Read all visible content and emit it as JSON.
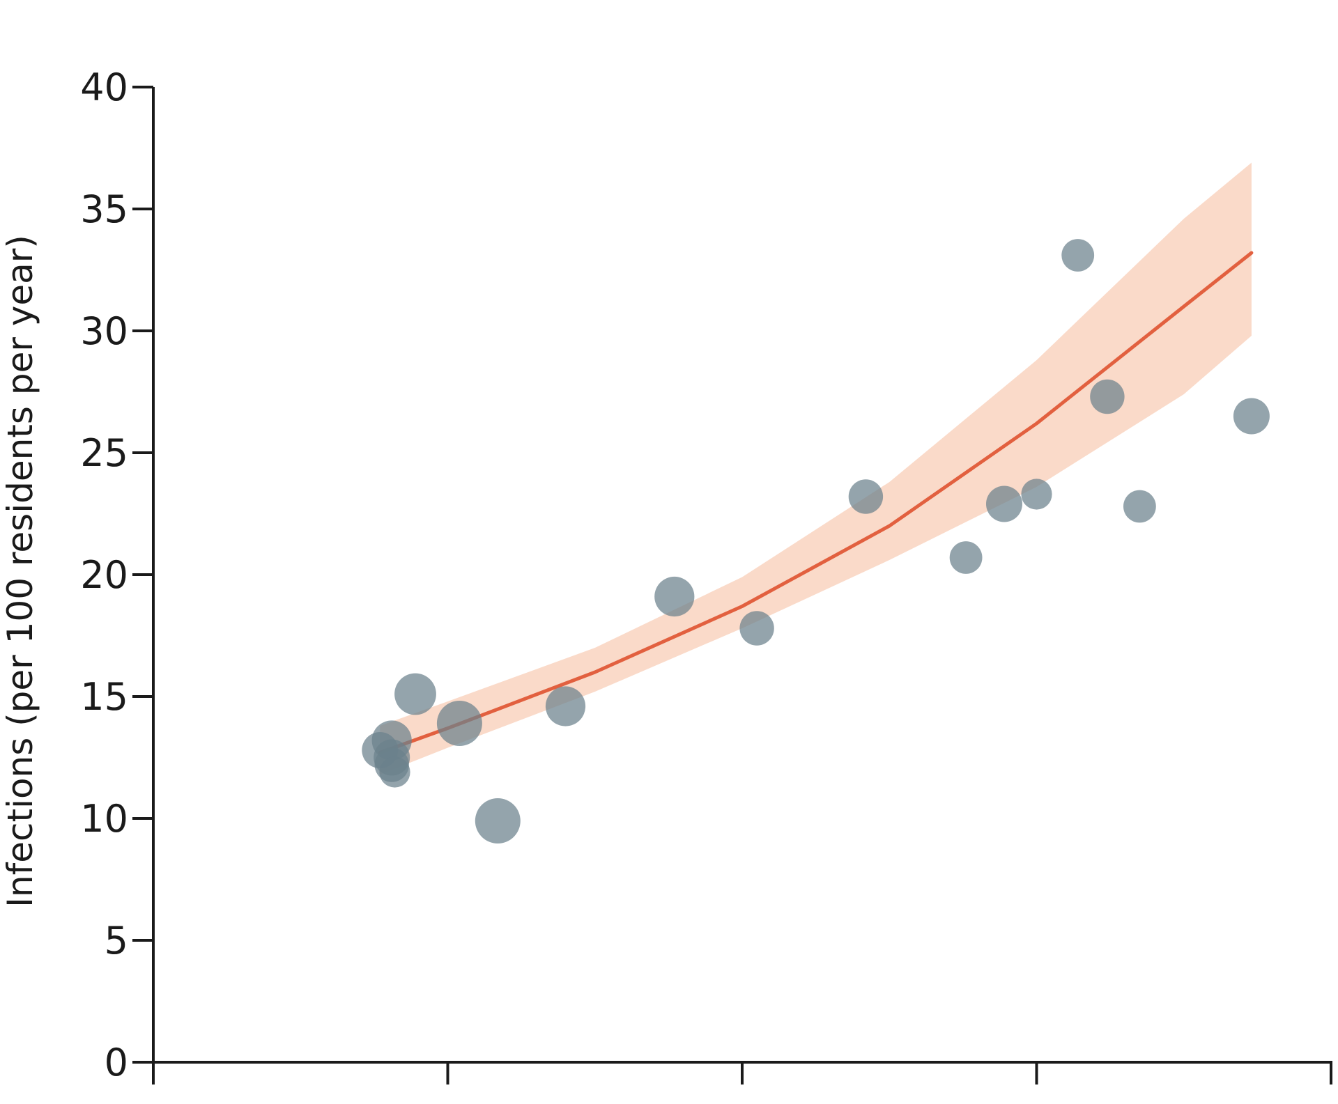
{
  "chart_data": {
    "type": "scatter",
    "title": "",
    "xlabel": "",
    "ylabel": "Infections (per 100 residents per year)",
    "xlim": [
      0,
      4
    ],
    "ylim": [
      0,
      40
    ],
    "y_ticks": [
      0,
      5,
      10,
      15,
      20,
      25,
      30,
      35,
      40
    ],
    "y_tick_labels": [
      "0",
      "5",
      "10",
      "15",
      "20",
      "25",
      "30",
      "35",
      "40"
    ],
    "x_ticks": [
      0,
      1,
      2,
      3,
      4
    ],
    "x_tick_labels": [
      "",
      "",
      "",
      "",
      ""
    ],
    "grid": false,
    "colors": {
      "points": "#6b818c",
      "points_overlap": "#2f5563",
      "fit_line": "#e2603f",
      "confidence_band": "#f9d3c0",
      "axis": "#1a1a1a"
    },
    "series": [
      {
        "type": "scatter",
        "points": [
          {
            "x": 0.77,
            "y": 12.8,
            "size": 1.0
          },
          {
            "x": 0.81,
            "y": 13.2,
            "size": 1.1
          },
          {
            "x": 0.81,
            "y": 12.5,
            "size": 1.0
          },
          {
            "x": 0.81,
            "y": 12.2,
            "size": 0.95
          },
          {
            "x": 0.82,
            "y": 11.9,
            "size": 0.85
          },
          {
            "x": 0.89,
            "y": 15.1,
            "size": 1.15
          },
          {
            "x": 1.04,
            "y": 13.9,
            "size": 1.25
          },
          {
            "x": 1.17,
            "y": 9.9,
            "size": 1.25
          },
          {
            "x": 1.4,
            "y": 14.6,
            "size": 1.1
          },
          {
            "x": 1.77,
            "y": 19.1,
            "size": 1.1
          },
          {
            "x": 2.05,
            "y": 17.8,
            "size": 0.95
          },
          {
            "x": 2.42,
            "y": 23.2,
            "size": 0.95
          },
          {
            "x": 2.76,
            "y": 20.7,
            "size": 0.9
          },
          {
            "x": 2.89,
            "y": 22.9,
            "size": 1.0
          },
          {
            "x": 3.0,
            "y": 23.3,
            "size": 0.85
          },
          {
            "x": 3.14,
            "y": 33.1,
            "size": 0.9
          },
          {
            "x": 3.24,
            "y": 27.3,
            "size": 0.95
          },
          {
            "x": 3.35,
            "y": 22.8,
            "size": 0.9
          },
          {
            "x": 3.73,
            "y": 26.5,
            "size": 1.0
          }
        ]
      },
      {
        "type": "line",
        "x": [
          0.77,
          1.0,
          1.5,
          2.0,
          2.5,
          3.0,
          3.5,
          3.73
        ],
        "y": [
          12.7,
          13.7,
          16.0,
          18.7,
          22.0,
          26.2,
          31.0,
          33.2
        ],
        "band_lower": [
          11.8,
          12.9,
          15.2,
          17.8,
          20.6,
          23.6,
          27.4,
          29.8
        ],
        "band_upper": [
          13.8,
          14.8,
          17.0,
          19.9,
          23.8,
          28.8,
          34.6,
          36.9
        ]
      }
    ]
  }
}
